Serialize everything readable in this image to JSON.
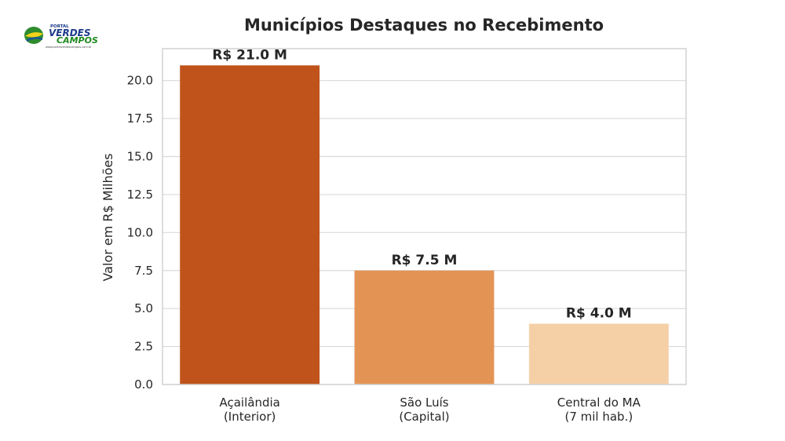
{
  "logo": {
    "top_text": "PORTAL",
    "line1": "VERDES",
    "line2": "CAMPOS",
    "url": "www.portalverdescampos.com.br"
  },
  "chart_data": {
    "type": "bar",
    "title": "Municípios Destaques no Recebimento",
    "xlabel": "",
    "ylabel": "Valor em R$ Milhões",
    "categories": [
      [
        "Açailândia",
        "(Interior)"
      ],
      [
        "São Luís",
        "(Capital)"
      ],
      [
        "Central do MA",
        "(7 mil hab.)"
      ]
    ],
    "values": [
      21.0,
      7.5,
      4.0
    ],
    "data_labels": [
      "R$ 21.0 M",
      "R$ 7.5 M",
      "R$ 4.0 M"
    ],
    "bar_colors": [
      "#bf531b",
      "#e39455",
      "#f5d0a7"
    ],
    "ylim": [
      0,
      22.1
    ],
    "yticks": [
      "0.0",
      "2.5",
      "5.0",
      "7.5",
      "10.0",
      "12.5",
      "15.0",
      "17.5",
      "20.0"
    ],
    "grid": true,
    "legend": "none"
  }
}
